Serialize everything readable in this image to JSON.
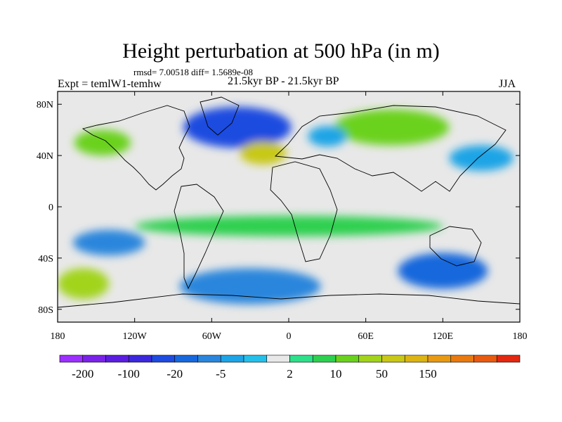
{
  "header": {
    "title": "Height perturbation at 500 hPa (in m)",
    "stats": "rmsd= 7.00518 diff= 1.5689e-08",
    "experiment": "Expt = temlW1-temhw",
    "period": "21.5kyr BP - 21.5kyr BP",
    "season": "JJA"
  },
  "chart_data": {
    "type": "heatmap",
    "title": "Height perturbation at 500 hPa (in m)",
    "xlabel": "",
    "ylabel": "",
    "xlim": [
      -180,
      180
    ],
    "ylim": [
      -90,
      90
    ],
    "x_ticks": [
      {
        "value": -180,
        "label": "180"
      },
      {
        "value": -120,
        "label": "120W"
      },
      {
        "value": -60,
        "label": "60W"
      },
      {
        "value": 0,
        "label": "0"
      },
      {
        "value": 60,
        "label": "60E"
      },
      {
        "value": 120,
        "label": "120E"
      },
      {
        "value": 180,
        "label": "180"
      }
    ],
    "y_ticks": [
      {
        "value": 80,
        "label": "80N"
      },
      {
        "value": 40,
        "label": "40N"
      },
      {
        "value": 0,
        "label": "0"
      },
      {
        "value": -40,
        "label": "40S"
      },
      {
        "value": -80,
        "label": "80S"
      }
    ],
    "colorbar": {
      "colors": [
        "#9b30ff",
        "#7a22e8",
        "#5b1ee0",
        "#3c28dc",
        "#1e4be0",
        "#1768dc",
        "#2a86dc",
        "#1ea4e6",
        "#25c0ea",
        "#e8e8e8",
        "#2ee08a",
        "#2ed050",
        "#6ad21e",
        "#a2d41c",
        "#c8c818",
        "#dcb414",
        "#e89a14",
        "#e87a10",
        "#e85a10",
        "#e22810"
      ],
      "labels": [
        "-200",
        "-100",
        "-20",
        "-5",
        "2",
        "10",
        "50",
        "150"
      ],
      "label_boundaries": [
        1,
        3,
        5,
        7,
        10,
        12,
        14,
        16
      ]
    },
    "regions": [
      {
        "name": "north-atlantic-low",
        "lon": -40,
        "lat": 62,
        "rlon": 42,
        "rlat": 16,
        "level": 4
      },
      {
        "name": "north-atlantic-high",
        "lon": -20,
        "lat": 42,
        "rlon": 18,
        "rlat": 9,
        "level": 14
      },
      {
        "name": "north-pacific-high",
        "lon": -145,
        "lat": 50,
        "rlon": 22,
        "rlat": 10,
        "level": 12
      },
      {
        "name": "siberia-high",
        "lon": 80,
        "lat": 62,
        "rlon": 45,
        "rlat": 14,
        "level": 12
      },
      {
        "name": "scandinavia-low",
        "lon": 30,
        "lat": 55,
        "rlon": 15,
        "rlat": 8,
        "level": 7
      },
      {
        "name": "east-asia-low",
        "lon": 150,
        "lat": 38,
        "rlon": 25,
        "rlat": 10,
        "level": 7
      },
      {
        "name": "south-pacific-low",
        "lon": -140,
        "lat": -28,
        "rlon": 28,
        "rlat": 10,
        "level": 6
      },
      {
        "name": "south-atlantic-low",
        "lon": -30,
        "lat": -62,
        "rlon": 55,
        "rlat": 14,
        "level": 6
      },
      {
        "name": "south-indian-low",
        "lon": 120,
        "lat": -50,
        "rlon": 35,
        "rlat": 14,
        "level": 5
      },
      {
        "name": "south-pacific-high",
        "lon": -160,
        "lat": -60,
        "rlon": 20,
        "rlat": 12,
        "level": 13
      },
      {
        "name": "tropical-band",
        "lon": 0,
        "lat": -15,
        "rlon": 120,
        "rlat": 8,
        "level": 11
      }
    ]
  }
}
